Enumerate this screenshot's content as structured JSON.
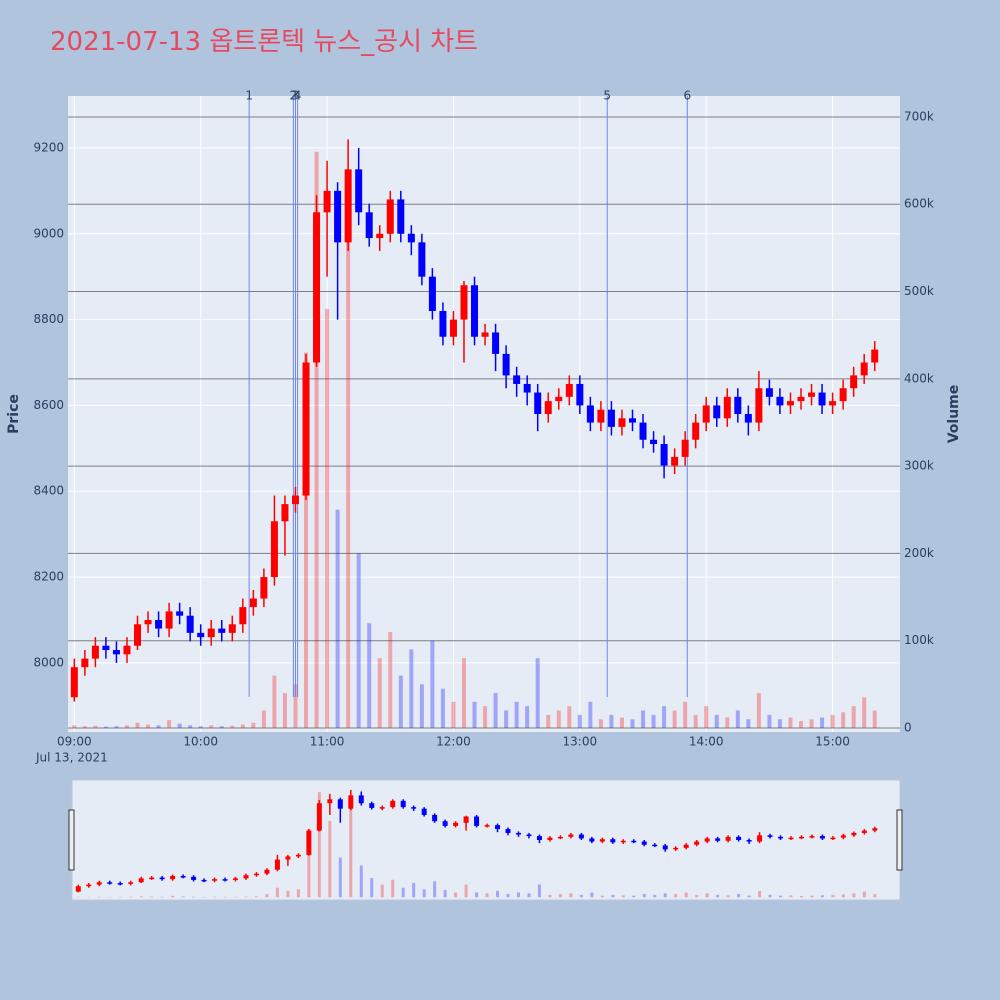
{
  "chart_data": {
    "type": "candlestick",
    "title": "2021-07-13 옵트론텍 뉴스_공시 차트",
    "y_label": "Price",
    "y2_label": "Volume",
    "x": [
      "09:00",
      "09:05",
      "09:10",
      "09:15",
      "09:20",
      "09:25",
      "09:30",
      "09:35",
      "09:40",
      "09:45",
      "09:50",
      "09:55",
      "10:00",
      "10:05",
      "10:10",
      "10:15",
      "10:20",
      "10:25",
      "10:30",
      "10:35",
      "10:40",
      "10:45",
      "10:50",
      "10:55",
      "11:00",
      "11:05",
      "11:10",
      "11:15",
      "11:20",
      "11:25",
      "11:30",
      "11:35",
      "11:40",
      "11:45",
      "11:50",
      "11:55",
      "12:00",
      "12:05",
      "12:10",
      "12:15",
      "12:20",
      "12:25",
      "12:30",
      "12:35",
      "12:40",
      "12:45",
      "12:50",
      "12:55",
      "13:00",
      "13:05",
      "13:10",
      "13:15",
      "13:20",
      "13:25",
      "13:30",
      "13:35",
      "13:40",
      "13:45",
      "13:50",
      "13:55",
      "14:00",
      "14:05",
      "14:10",
      "14:15",
      "14:20",
      "14:25",
      "14:30",
      "14:35",
      "14:40",
      "14:45",
      "14:50",
      "14:55",
      "15:00",
      "15:05",
      "15:10",
      "15:15",
      "15:20"
    ],
    "open": [
      7920,
      7990,
      8010,
      8040,
      8030,
      8020,
      8040,
      8090,
      8100,
      8080,
      8120,
      8110,
      8070,
      8060,
      8080,
      8070,
      8090,
      8130,
      8150,
      8200,
      8330,
      8370,
      8390,
      8700,
      9050,
      9100,
      8980,
      9150,
      9050,
      8990,
      9000,
      9080,
      9000,
      8980,
      8900,
      8820,
      8760,
      8800,
      8880,
      8760,
      8770,
      8720,
      8670,
      8650,
      8630,
      8580,
      8610,
      8620,
      8650,
      8600,
      8560,
      8590,
      8550,
      8570,
      8560,
      8520,
      8510,
      8460,
      8480,
      8520,
      8560,
      8600,
      8570,
      8620,
      8580,
      8560,
      8640,
      8620,
      8600,
      8610,
      8620,
      8630,
      8600,
      8610,
      8640,
      8670,
      8700
    ],
    "high": [
      8010,
      8030,
      8060,
      8060,
      8050,
      8060,
      8110,
      8120,
      8120,
      8140,
      8140,
      8130,
      8090,
      8100,
      8100,
      8110,
      8150,
      8170,
      8220,
      8390,
      8390,
      8410,
      8720,
      9090,
      9170,
      9120,
      9220,
      9200,
      9070,
      9020,
      9100,
      9100,
      9020,
      9000,
      8920,
      8840,
      8820,
      8890,
      8900,
      8790,
      8790,
      8740,
      8690,
      8670,
      8650,
      8630,
      8640,
      8670,
      8670,
      8620,
      8610,
      8610,
      8590,
      8590,
      8580,
      8540,
      8530,
      8500,
      8540,
      8580,
      8620,
      8620,
      8640,
      8640,
      8600,
      8680,
      8660,
      8640,
      8630,
      8640,
      8650,
      8650,
      8630,
      8660,
      8690,
      8720,
      8750
    ],
    "low": [
      7910,
      7970,
      7990,
      8010,
      8000,
      8000,
      8030,
      8070,
      8060,
      8060,
      8090,
      8050,
      8040,
      8040,
      8050,
      8050,
      8070,
      8110,
      8130,
      8180,
      8250,
      8350,
      8380,
      8690,
      8900,
      8800,
      8960,
      9020,
      8970,
      8960,
      8980,
      8980,
      8950,
      8880,
      8800,
      8740,
      8740,
      8700,
      8740,
      8740,
      8680,
      8640,
      8620,
      8600,
      8540,
      8560,
      8590,
      8600,
      8580,
      8540,
      8540,
      8530,
      8530,
      8540,
      8500,
      8490,
      8430,
      8440,
      8460,
      8500,
      8540,
      8550,
      8550,
      8560,
      8530,
      8540,
      8600,
      8580,
      8580,
      8590,
      8600,
      8580,
      8580,
      8590,
      8620,
      8650,
      8680
    ],
    "close": [
      7990,
      8010,
      8040,
      8030,
      8020,
      8040,
      8090,
      8100,
      8080,
      8120,
      8110,
      8070,
      8060,
      8080,
      8070,
      8090,
      8130,
      8150,
      8200,
      8330,
      8370,
      8390,
      8700,
      9050,
      9100,
      8980,
      9150,
      9050,
      8990,
      9000,
      9080,
      9000,
      8980,
      8900,
      8820,
      8760,
      8800,
      8880,
      8760,
      8770,
      8720,
      8670,
      8650,
      8630,
      8580,
      8610,
      8620,
      8650,
      8600,
      8560,
      8590,
      8550,
      8570,
      8560,
      8520,
      8510,
      8460,
      8480,
      8520,
      8560,
      8600,
      8570,
      8620,
      8580,
      8560,
      8640,
      8620,
      8600,
      8610,
      8620,
      8630,
      8600,
      8610,
      8640,
      8670,
      8700,
      8730
    ],
    "volume": [
      3000,
      2000,
      2500,
      1500,
      2000,
      3000,
      6000,
      4000,
      3000,
      9000,
      5000,
      3000,
      2000,
      3000,
      2000,
      2500,
      4000,
      6000,
      20000,
      60000,
      40000,
      50000,
      430000,
      660000,
      480000,
      250000,
      640000,
      200000,
      120000,
      80000,
      110000,
      60000,
      90000,
      50000,
      100000,
      45000,
      30000,
      80000,
      30000,
      25000,
      40000,
      20000,
      30000,
      25000,
      80000,
      15000,
      20000,
      25000,
      15000,
      30000,
      10000,
      15000,
      12000,
      10000,
      20000,
      15000,
      25000,
      20000,
      30000,
      15000,
      25000,
      15000,
      12000,
      20000,
      10000,
      40000,
      15000,
      10000,
      12000,
      8000,
      10000,
      12000,
      15000,
      18000,
      25000,
      35000,
      20000
    ],
    "increasing_color": "#ff0000",
    "decreasing_color": "#0000ff",
    "xlim": [
      "08:57",
      "15:32"
    ],
    "xticks": [
      "09:00",
      "10:00",
      "11:00",
      "12:00",
      "13:00",
      "14:00",
      "15:00"
    ],
    "x_date_label": "Jul 13, 2021",
    "ylim": [
      7839,
      9321
    ],
    "yticks": [
      8000,
      8200,
      8400,
      8600,
      8800,
      9000,
      9200
    ],
    "y2lim": [
      -4600,
      724000
    ],
    "y2ticks": [
      0,
      {
        "value": 100000,
        "label": "100k"
      },
      {
        "value": 200000,
        "label": "200k"
      },
      {
        "value": 300000,
        "label": "300k"
      },
      {
        "value": 400000,
        "label": "400k"
      },
      {
        "value": 500000,
        "label": "500k"
      },
      {
        "value": 600000,
        "label": "600k"
      },
      {
        "value": 700000,
        "label": "700k"
      }
    ],
    "events": [
      {
        "label": "1",
        "x": "10:23"
      },
      {
        "label": "2",
        "x": "10:44"
      },
      {
        "label": "3",
        "x": "10:45"
      },
      {
        "label": "4",
        "x": "10:46"
      },
      {
        "label": "5",
        "x": "13:13"
      },
      {
        "label": "6",
        "x": "13:51"
      }
    ],
    "grid": true,
    "rangeslider": true
  }
}
